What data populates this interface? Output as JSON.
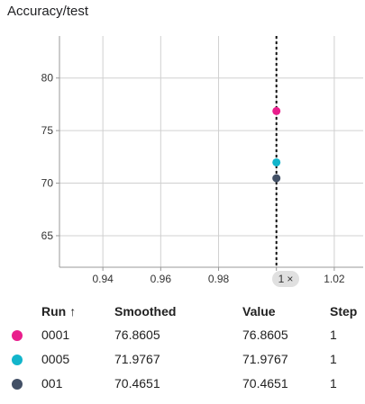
{
  "chart_data": {
    "type": "scatter",
    "title": "Accuracy/test",
    "xlim": [
      0.925,
      1.03
    ],
    "ylim": [
      62,
      84
    ],
    "x_ticks": [
      0.94,
      0.96,
      0.98,
      1.0,
      1.02
    ],
    "x_tick_labels": [
      "0.94",
      "0.96",
      "0.98",
      "1",
      "1.02"
    ],
    "y_ticks": [
      65,
      70,
      75,
      80
    ],
    "y_tick_labels": [
      "65",
      "70",
      "75",
      "80"
    ],
    "grid": true,
    "hover_x": 1.0,
    "series": [
      {
        "name": "0001",
        "color": "#e91e8c",
        "x": [
          1.0
        ],
        "y": [
          76.8605
        ]
      },
      {
        "name": "0005",
        "color": "#12b5cb",
        "x": [
          1.0
        ],
        "y": [
          71.9767
        ]
      },
      {
        "name": "001",
        "color": "#425066",
        "x": [
          1.0
        ],
        "y": [
          70.4651
        ]
      }
    ]
  },
  "tooltip": {
    "hover_label": "1",
    "close_glyph": "×",
    "headers": {
      "run": "Run",
      "sort_arrow": "↑",
      "smoothed": "Smoothed",
      "value": "Value",
      "step": "Step"
    },
    "rows": [
      {
        "run": "0001",
        "smoothed": "76.8605",
        "value": "76.8605",
        "step": "1",
        "color": "#e91e8c"
      },
      {
        "run": "0005",
        "smoothed": "71.9767",
        "value": "71.9767",
        "step": "1",
        "color": "#12b5cb"
      },
      {
        "run": "001",
        "smoothed": "70.4651",
        "value": "70.4651",
        "step": "1",
        "color": "#425066"
      }
    ]
  }
}
